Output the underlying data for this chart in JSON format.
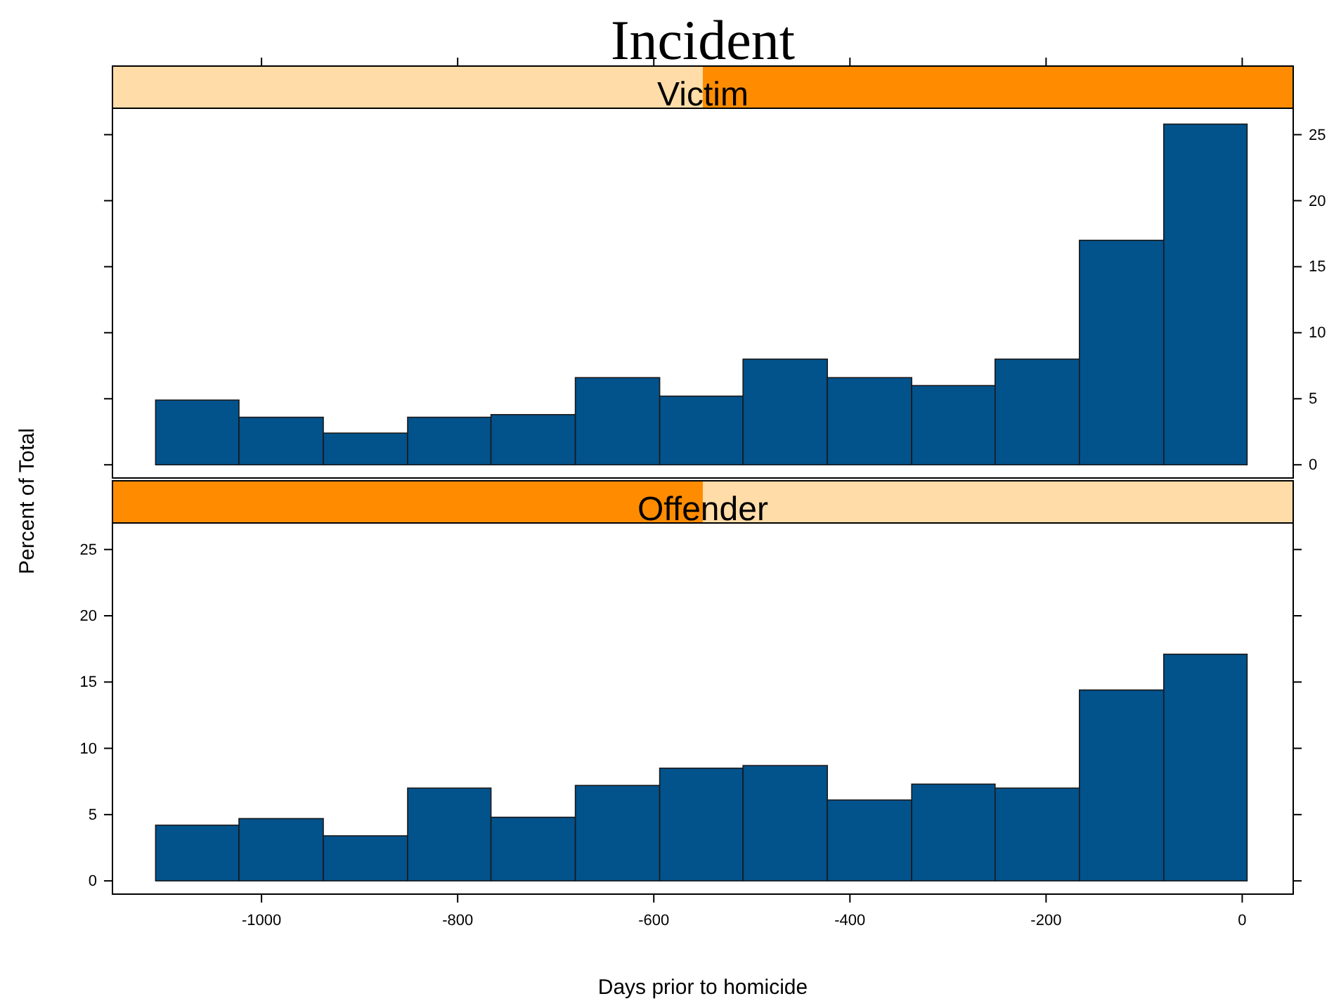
{
  "chart_data": [
    {
      "type": "histogram",
      "title": "Incident",
      "subtitle": "Victim",
      "color": "#02528c",
      "bins": [
        -1108,
        -1023,
        -937,
        -851,
        -766,
        -680,
        -594,
        -509,
        -423,
        -337,
        -252,
        -166,
        -80,
        5
      ],
      "values": [
        4.9,
        3.6,
        2.4,
        3.6,
        3.8,
        6.6,
        5.2,
        8.0,
        6.6,
        6.0,
        8.0,
        17.0,
        25.8
      ],
      "xlim": [
        -1152,
        52
      ],
      "xticks": [
        -1000,
        -800,
        -600,
        -400,
        -200,
        0
      ],
      "ylim": [
        -1,
        27
      ],
      "yticks": [
        0,
        5,
        10,
        15,
        20,
        25
      ],
      "tick_labels": "y"
    },
    {
      "type": "histogram",
      "subtitle": "Offender",
      "xlabel": "Days prior to homicide",
      "ylabel": "Percent of Total",
      "color": "#02528c",
      "bins": [
        -1108,
        -1023,
        -937,
        -851,
        -766,
        -680,
        -594,
        -509,
        -423,
        -337,
        -252,
        -166,
        -80,
        5
      ],
      "values": [
        4.2,
        4.7,
        3.4,
        7.0,
        4.8,
        7.2,
        8.5,
        8.7,
        6.1,
        7.3,
        7.0,
        14.4,
        17.1
      ],
      "xlim": [
        -1152,
        52
      ],
      "xticks": [
        -1000,
        -800,
        -600,
        -400,
        -200,
        0
      ],
      "ylim": [
        -1,
        27
      ],
      "yticks": [
        0,
        5,
        10,
        15,
        20,
        25
      ]
    }
  ]
}
